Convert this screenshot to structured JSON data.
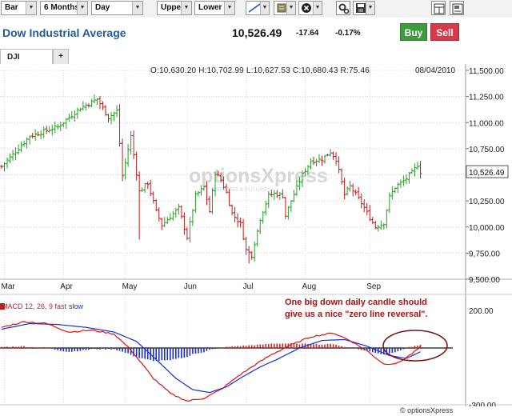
{
  "toolbar": {
    "chart_type": "Bar",
    "period": "6 Months",
    "interval": "Day",
    "upper": "Upper",
    "lower": "Lower",
    "icons": [
      "trendline-icon",
      "indicator-icon",
      "close-circle-icon",
      "settings-icon",
      "save-icon",
      "print-icon",
      "export-icon"
    ]
  },
  "header": {
    "title": "Dow Industrial Average",
    "price": "10,526.49",
    "change": "-17.64",
    "percent": "-0.17%",
    "buy_label": "Buy",
    "sell_label": "Sell"
  },
  "tabs": [
    {
      "label": "DJI"
    }
  ],
  "tab_add_label": "+",
  "ohlc": "O:10,630.20  H:10,702.99  L:10,627.53  C:10,680.43  R:75.46",
  "date": "08/04/2010",
  "watermark": "optionsXpress",
  "watermark_sub": "OPTIONS & FUTURES",
  "annotation": {
    "line1": "One big down daily candle should",
    "line2": "give us a nice \"zero line reversal\"."
  },
  "macd_label": {
    "prefix": "MACD 12, 26, 9 ",
    "fast": "fast",
    "slow": "slow"
  },
  "footer": "© optionsXpress",
  "colors": {
    "up": "#22a022",
    "down": "#c01c1c",
    "macd_fast": "#e01010",
    "macd_slow": "#1030e0",
    "title": "#1f5c99",
    "buy": "#3f9a3f",
    "sell": "#d83a4b"
  },
  "chart_data": {
    "type": "bar",
    "price_axis": {
      "ticks": [
        "11,500.00",
        "11,250.00",
        "11,000.00",
        "10,750.00",
        "10,500.00",
        "10,250.00",
        "10,000.00",
        "9,750.00",
        "9,500.00"
      ],
      "values": [
        11500,
        11250,
        11000,
        10750,
        10500,
        10250,
        10000,
        9750,
        9500
      ],
      "ylim": [
        9500,
        11500
      ],
      "last_price_label": "10,526.49",
      "last_price": 10526.49
    },
    "macd_axis": {
      "ticks": [
        "200.00",
        "-300.00"
      ],
      "values": [
        200,
        -300
      ],
      "ylim": [
        -300,
        200
      ]
    },
    "x_axis": {
      "labels": [
        "Mar",
        "Apr",
        "May",
        "Jun",
        "Jul",
        "Aug",
        "Sep"
      ],
      "label_index": [
        1,
        22,
        44,
        66,
        87,
        108,
        131
      ],
      "days": 150
    },
    "price_path": [
      [
        0,
        10580
      ],
      [
        10,
        10870
      ],
      [
        20,
        10960
      ],
      [
        28,
        11140
      ],
      [
        34,
        11225
      ],
      [
        38,
        11050
      ],
      [
        41,
        11110
      ],
      [
        43,
        10490
      ],
      [
        46,
        10870
      ],
      [
        49,
        10340
      ],
      [
        52,
        10420
      ],
      [
        55,
        10150
      ],
      [
        57,
        10020
      ],
      [
        63,
        10180
      ],
      [
        66,
        9900
      ],
      [
        69,
        10300
      ],
      [
        72,
        10380
      ],
      [
        74,
        10150
      ],
      [
        76,
        10520
      ],
      [
        78,
        10450
      ],
      [
        80,
        10330
      ],
      [
        82,
        10130
      ],
      [
        85,
        10030
      ],
      [
        87,
        9780
      ],
      [
        89,
        9730
      ],
      [
        92,
        10080
      ],
      [
        95,
        10300
      ],
      [
        97,
        10320
      ],
      [
        100,
        10300
      ],
      [
        101,
        10110
      ],
      [
        103,
        10250
      ],
      [
        107,
        10500
      ],
      [
        110,
        10630
      ],
      [
        114,
        10650
      ],
      [
        117,
        10720
      ],
      [
        119,
        10650
      ],
      [
        122,
        10310
      ],
      [
        124,
        10390
      ],
      [
        128,
        10230
      ],
      [
        131,
        10090
      ],
      [
        133,
        10000
      ],
      [
        136,
        10040
      ],
      [
        138,
        10290
      ],
      [
        140,
        10380
      ],
      [
        143,
        10440
      ],
      [
        146,
        10520
      ],
      [
        148,
        10595
      ],
      [
        149,
        10526
      ]
    ],
    "macd": {
      "fast_path": [
        [
          0,
          110
        ],
        [
          8,
          140
        ],
        [
          16,
          130
        ],
        [
          24,
          85
        ],
        [
          32,
          95
        ],
        [
          40,
          75
        ],
        [
          46,
          -10
        ],
        [
          54,
          -160
        ],
        [
          60,
          -240
        ],
        [
          66,
          -280
        ],
        [
          72,
          -265
        ],
        [
          78,
          -220
        ],
        [
          84,
          -150
        ],
        [
          90,
          -90
        ],
        [
          96,
          -35
        ],
        [
          102,
          10
        ],
        [
          110,
          60
        ],
        [
          118,
          80
        ],
        [
          124,
          40
        ],
        [
          130,
          -15
        ],
        [
          136,
          -85
        ],
        [
          141,
          -80
        ],
        [
          146,
          -30
        ],
        [
          149,
          5
        ]
      ],
      "slow_path": [
        [
          0,
          100
        ],
        [
          10,
          130
        ],
        [
          20,
          125
        ],
        [
          30,
          110
        ],
        [
          40,
          85
        ],
        [
          48,
          35
        ],
        [
          56,
          -75
        ],
        [
          62,
          -160
        ],
        [
          68,
          -220
        ],
        [
          74,
          -235
        ],
        [
          80,
          -205
        ],
        [
          86,
          -150
        ],
        [
          92,
          -100
        ],
        [
          98,
          -60
        ],
        [
          106,
          0
        ],
        [
          114,
          40
        ],
        [
          122,
          45
        ],
        [
          130,
          10
        ],
        [
          138,
          -40
        ],
        [
          144,
          -55
        ],
        [
          149,
          -20
        ]
      ]
    }
  }
}
